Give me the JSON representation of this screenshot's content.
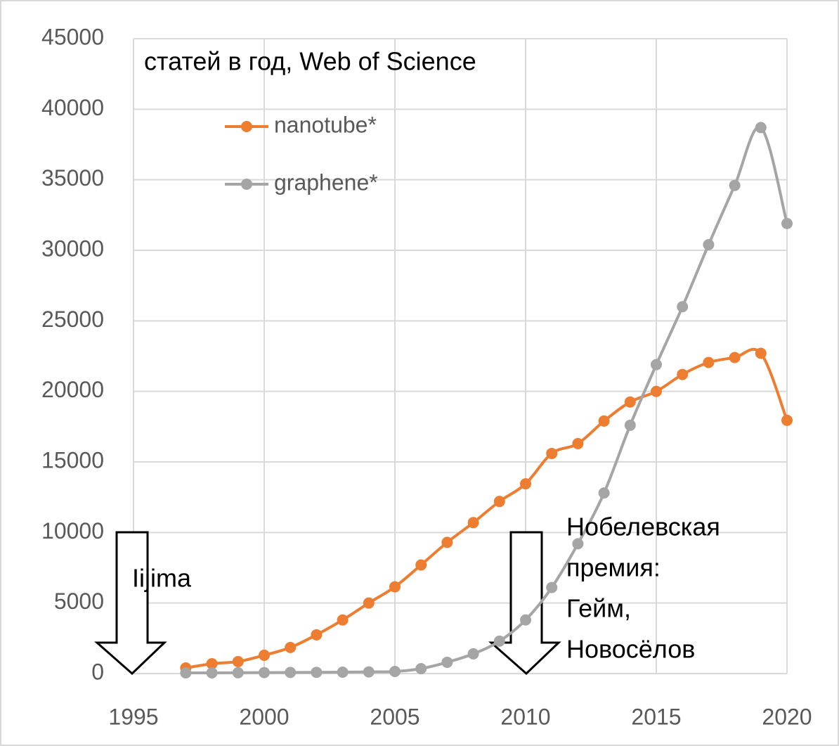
{
  "chart_data": {
    "type": "line",
    "title": "статей в год, Web of Science",
    "x": [
      1997,
      1998,
      1999,
      2000,
      2001,
      2002,
      2003,
      2004,
      2005,
      2006,
      2007,
      2008,
      2009,
      2010,
      2011,
      2012,
      2013,
      2014,
      2015,
      2016,
      2017,
      2018,
      2019,
      2020
    ],
    "series": [
      {
        "name": "nanotube*",
        "color": "#ed7d31",
        "values": [
          400,
          700,
          850,
          1300,
          1850,
          2750,
          3800,
          5000,
          6150,
          7700,
          9300,
          10700,
          12200,
          13450,
          15600,
          16300,
          17900,
          19250,
          20000,
          21200,
          22050,
          22400,
          22700,
          17950
        ]
      },
      {
        "name": "graphene*",
        "color": "#a5a5a5",
        "values": [
          50,
          50,
          60,
          70,
          80,
          90,
          100,
          120,
          150,
          350,
          800,
          1400,
          2300,
          3800,
          6100,
          9200,
          12800,
          17600,
          21900,
          26000,
          30400,
          34600,
          38700,
          31900
        ]
      }
    ],
    "xlim": [
      1995,
      2020
    ],
    "xticks": [
      1995,
      2000,
      2005,
      2010,
      2015,
      2020
    ],
    "ylim": [
      0,
      45000
    ],
    "yticks": [
      0,
      5000,
      10000,
      15000,
      20000,
      25000,
      30000,
      35000,
      40000,
      45000
    ],
    "grid": true,
    "legend": "upper left",
    "annotations": [
      {
        "x": 1995,
        "lines": [
          "Iijima"
        ]
      },
      {
        "x": 2010,
        "lines": [
          "Нобелевская",
          "премия:",
          "Гейм,",
          "Новосёлов"
        ]
      }
    ]
  }
}
